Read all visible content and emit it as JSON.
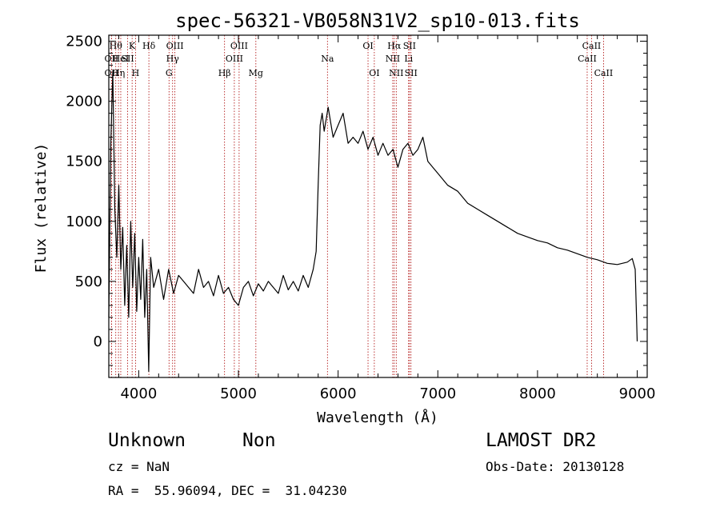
{
  "chart_data": {
    "type": "line",
    "title": "spec-56321-VB058N31V2_sp10-013.fits",
    "xlabel": "Wavelength (Å)",
    "ylabel": "Flux (relative)",
    "xlim": [
      3700,
      9100
    ],
    "ylim": [
      -300,
      2550
    ],
    "x_ticks": [
      4000,
      5000,
      6000,
      7000,
      8000,
      9000
    ],
    "y_ticks": [
      0,
      500,
      1000,
      1500,
      2000,
      2500
    ],
    "grid": false,
    "series": [
      {
        "x": [
          3700,
          3720,
          3740,
          3760,
          3780,
          3800,
          3820,
          3840,
          3860,
          3880,
          3900,
          3920,
          3940,
          3960,
          3980,
          4000,
          4020,
          4040,
          4060,
          4080,
          4100,
          4120,
          4150,
          4200,
          4250,
          4300,
          4350,
          4400,
          4450,
          4500,
          4550,
          4600,
          4650,
          4700,
          4750,
          4800,
          4850,
          4900,
          4950,
          5000,
          5050,
          5100,
          5150,
          5200,
          5250,
          5300,
          5350,
          5400,
          5450,
          5500,
          5550,
          5600,
          5650,
          5700,
          5750,
          5780,
          5800,
          5820,
          5840,
          5860,
          5880,
          5900,
          5950,
          6000,
          6050,
          6100,
          6150,
          6200,
          6250,
          6300,
          6350,
          6400,
          6450,
          6500,
          6550,
          6600,
          6650,
          6700,
          6750,
          6800,
          6850,
          6900,
          6950,
          7000,
          7100,
          7200,
          7300,
          7400,
          7500,
          7600,
          7700,
          7800,
          7900,
          8000,
          8100,
          8200,
          8300,
          8400,
          8500,
          8600,
          8700,
          8800,
          8900,
          8950,
          8980,
          9000
        ],
        "values": [
          200,
          1650,
          2250,
          1100,
          700,
          1300,
          600,
          950,
          300,
          800,
          200,
          1000,
          450,
          900,
          250,
          700,
          350,
          850,
          200,
          600,
          -250,
          700,
          450,
          600,
          350,
          600,
          400,
          550,
          500,
          450,
          400,
          600,
          450,
          500,
          380,
          550,
          400,
          450,
          350,
          300,
          450,
          500,
          380,
          480,
          420,
          500,
          450,
          400,
          550,
          430,
          500,
          420,
          550,
          450,
          600,
          750,
          1300,
          1800,
          1900,
          1750,
          1850,
          1950,
          1700,
          1800,
          1900,
          1650,
          1700,
          1650,
          1750,
          1600,
          1700,
          1550,
          1650,
          1550,
          1600,
          1450,
          1600,
          1650,
          1550,
          1600,
          1700,
          1500,
          1450,
          1400,
          1300,
          1250,
          1150,
          1100,
          1050,
          1000,
          950,
          900,
          870,
          840,
          820,
          780,
          760,
          730,
          700,
          680,
          650,
          640,
          660,
          690,
          600,
          0
        ]
      }
    ],
    "annotations": [
      {
        "x": 3727,
        "row": 1,
        "label": "OII"
      },
      {
        "x": 3727,
        "row": 2,
        "label": "OII"
      },
      {
        "x": 3770,
        "row": 0,
        "label": "Hθ"
      },
      {
        "x": 3797,
        "row": 2,
        "label": "Hη"
      },
      {
        "x": 3820,
        "row": 1,
        "label": "HeI"
      },
      {
        "x": 3889,
        "row": 1,
        "label": "SII"
      },
      {
        "x": 3934,
        "row": 0,
        "label": "K"
      },
      {
        "x": 3968,
        "row": 2,
        "label": "H"
      },
      {
        "x": 4102,
        "row": 0,
        "label": "Hδ"
      },
      {
        "x": 4304,
        "row": 2,
        "label": "G"
      },
      {
        "x": 4340,
        "row": 1,
        "label": "Hγ"
      },
      {
        "x": 4363,
        "row": 0,
        "label": "OIII"
      },
      {
        "x": 4861,
        "row": 2,
        "label": "Hβ"
      },
      {
        "x": 4959,
        "row": 1,
        "label": "OIII"
      },
      {
        "x": 5007,
        "row": 0,
        "label": "OIII"
      },
      {
        "x": 5175,
        "row": 2,
        "label": "Mg"
      },
      {
        "x": 5893,
        "row": 1,
        "label": "Na"
      },
      {
        "x": 6300,
        "row": 0,
        "label": "OI"
      },
      {
        "x": 6363,
        "row": 2,
        "label": "OI"
      },
      {
        "x": 6548,
        "row": 1,
        "label": "NII"
      },
      {
        "x": 6563,
        "row": 0,
        "label": "Hα"
      },
      {
        "x": 6583,
        "row": 2,
        "label": "NII"
      },
      {
        "x": 6707,
        "row": 1,
        "label": "Li"
      },
      {
        "x": 6716,
        "row": 0,
        "label": "SII"
      },
      {
        "x": 6731,
        "row": 2,
        "label": "SII"
      },
      {
        "x": 8498,
        "row": 1,
        "label": "CaII"
      },
      {
        "x": 8542,
        "row": 0,
        "label": "CaII"
      },
      {
        "x": 8662,
        "row": 2,
        "label": "CaII"
      }
    ]
  },
  "info": {
    "class_label": "Unknown",
    "subclass_label": "Non",
    "survey": "LAMOST DR2",
    "cz": "cz = NaN",
    "obs_date": "Obs-Date: 20130128",
    "coords": "RA =  55.96094, DEC =  31.04230"
  },
  "colors": {
    "line": "#000000",
    "marker_line": "#aa0000",
    "axes": "#000000"
  }
}
